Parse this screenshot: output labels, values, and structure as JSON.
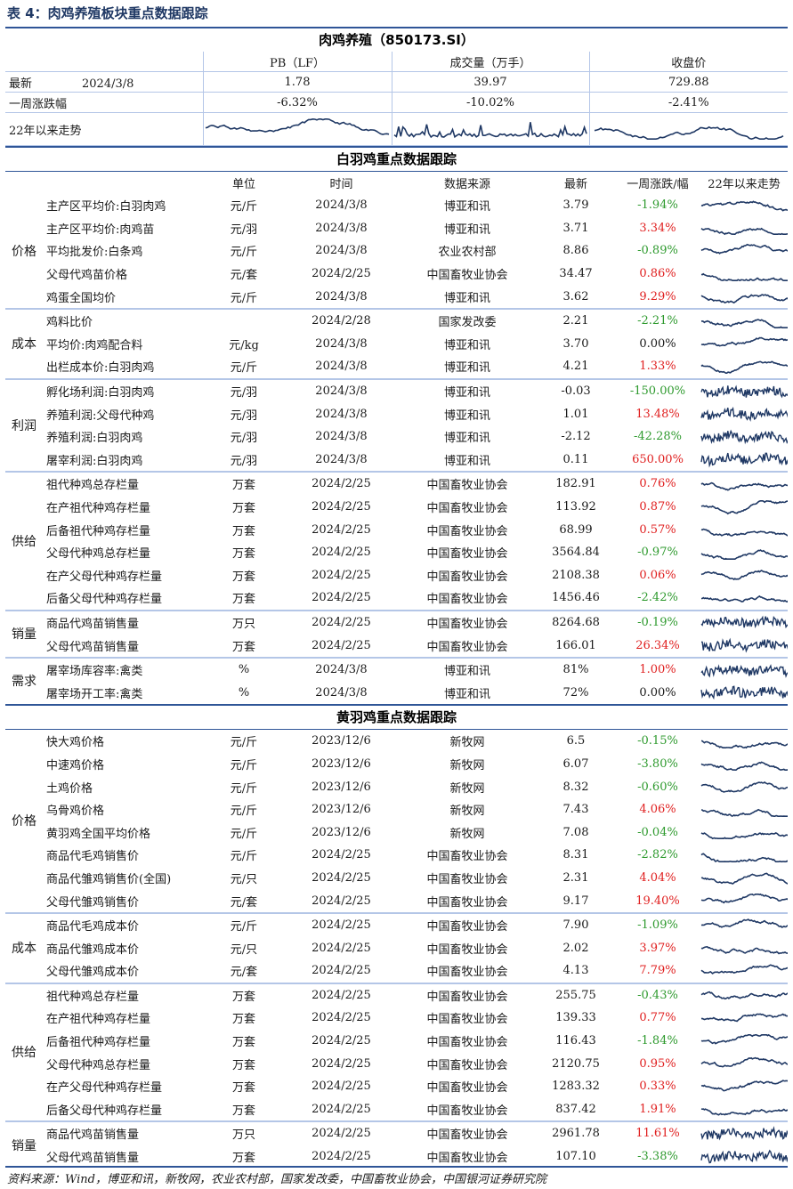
{
  "caption": "表 4：肉鸡养殖板块重点数据跟踪",
  "stock": {
    "title": "肉鸡养殖（850173.SI）",
    "columns": [
      "PB（LF）",
      "成交量（万手）",
      "收盘价"
    ],
    "latest_label": "最新",
    "latest_date": "2024/3/8",
    "latest_values": [
      "1.78",
      "39.97",
      "729.88"
    ],
    "week_label": "一周涨跌幅",
    "week_values": [
      "-6.32%",
      "-10.02%",
      "-2.41%"
    ],
    "trend_label": "22年以来走势"
  },
  "white": {
    "title": "白羽鸡重点数据跟踪",
    "headers": [
      "单位",
      "时间",
      "数据来源",
      "最新",
      "一周涨跌/幅",
      "22年以来走势"
    ],
    "groups": [
      {
        "name": "价格",
        "rows": [
          {
            "name": "主产区平均价:白羽肉鸡",
            "unit": "元/斤",
            "date": "2024/3/8",
            "source": "博亚和讯",
            "latest": "3.79",
            "change": "-1.94%",
            "dir": "neg"
          },
          {
            "name": "主产区平均价:肉鸡苗",
            "unit": "元/羽",
            "date": "2024/3/8",
            "source": "博亚和讯",
            "latest": "3.71",
            "change": "3.34%",
            "dir": "pos"
          },
          {
            "name": "平均批发价:白条鸡",
            "unit": "元/斤",
            "date": "2024/3/8",
            "source": "农业农村部",
            "latest": "8.86",
            "change": "-0.89%",
            "dir": "neg"
          },
          {
            "name": "父母代鸡苗价格",
            "unit": "元/套",
            "date": "2024/2/25",
            "source": "中国畜牧业协会",
            "latest": "34.47",
            "change": "0.86%",
            "dir": "pos"
          },
          {
            "name": "鸡蛋全国均价",
            "unit": "元/斤",
            "date": "2024/3/8",
            "source": "博亚和讯",
            "latest": "3.62",
            "change": "9.29%",
            "dir": "pos"
          }
        ]
      },
      {
        "name": "成本",
        "rows": [
          {
            "name": "鸡料比价",
            "unit": "",
            "date": "2024/2/28",
            "source": "国家发改委",
            "latest": "2.21",
            "change": "-2.21%",
            "dir": "neg"
          },
          {
            "name": "平均价:肉鸡配合料",
            "unit": "元/kg",
            "date": "2024/3/8",
            "source": "博亚和讯",
            "latest": "3.70",
            "change": "0.00%",
            "dir": "zero"
          },
          {
            "name": "出栏成本价:白羽肉鸡",
            "unit": "元/斤",
            "date": "2024/3/8",
            "source": "博亚和讯",
            "latest": "4.21",
            "change": "1.33%",
            "dir": "pos"
          }
        ]
      },
      {
        "name": "利润",
        "rows": [
          {
            "name": "孵化场利润:白羽肉鸡",
            "unit": "元/羽",
            "date": "2024/3/8",
            "source": "博亚和讯",
            "latest": "-0.03",
            "change": "-150.00%",
            "dir": "neg"
          },
          {
            "name": "养殖利润:父母代种鸡",
            "unit": "元/羽",
            "date": "2024/3/8",
            "source": "博亚和讯",
            "latest": "1.01",
            "change": "13.48%",
            "dir": "pos"
          },
          {
            "name": "养殖利润:白羽肉鸡",
            "unit": "元/羽",
            "date": "2024/3/8",
            "source": "博亚和讯",
            "latest": "-2.12",
            "change": "-42.28%",
            "dir": "neg"
          },
          {
            "name": "屠宰利润:白羽肉鸡",
            "unit": "元/羽",
            "date": "2024/3/8",
            "source": "博亚和讯",
            "latest": "0.11",
            "change": "650.00%",
            "dir": "pos"
          }
        ]
      },
      {
        "name": "供给",
        "rows": [
          {
            "name": "祖代种鸡总存栏量",
            "unit": "万套",
            "date": "2024/2/25",
            "source": "中国畜牧业协会",
            "latest": "182.91",
            "change": "0.76%",
            "dir": "pos"
          },
          {
            "name": "在产祖代种鸡存栏量",
            "unit": "万套",
            "date": "2024/2/25",
            "source": "中国畜牧业协会",
            "latest": "113.92",
            "change": "0.87%",
            "dir": "pos"
          },
          {
            "name": "后备祖代种鸡存栏量",
            "unit": "万套",
            "date": "2024/2/25",
            "source": "中国畜牧业协会",
            "latest": "68.99",
            "change": "0.57%",
            "dir": "pos"
          },
          {
            "name": "父母代种鸡总存栏量",
            "unit": "万套",
            "date": "2024/2/25",
            "source": "中国畜牧业协会",
            "latest": "3564.84",
            "change": "-0.97%",
            "dir": "neg"
          },
          {
            "name": "在产父母代种鸡存栏量",
            "unit": "万套",
            "date": "2024/2/25",
            "source": "中国畜牧业协会",
            "latest": "2108.38",
            "change": "0.06%",
            "dir": "pos"
          },
          {
            "name": "后备父母代种鸡存栏量",
            "unit": "万套",
            "date": "2024/2/25",
            "source": "中国畜牧业协会",
            "latest": "1456.46",
            "change": "-2.42%",
            "dir": "neg"
          }
        ]
      },
      {
        "name": "销量",
        "rows": [
          {
            "name": "商品代鸡苗销售量",
            "unit": "万只",
            "date": "2024/2/25",
            "source": "中国畜牧业协会",
            "latest": "8264.68",
            "change": "-0.19%",
            "dir": "neg"
          },
          {
            "name": "父母代鸡苗销售量",
            "unit": "万套",
            "date": "2024/2/25",
            "source": "中国畜牧业协会",
            "latest": "166.01",
            "change": "26.34%",
            "dir": "pos"
          }
        ]
      },
      {
        "name": "需求",
        "rows": [
          {
            "name": "屠宰场库容率:禽类",
            "unit": "%",
            "date": "2024/3/8",
            "source": "博亚和讯",
            "latest": "81%",
            "change": "1.00%",
            "dir": "pos"
          },
          {
            "name": "屠宰场开工率:禽类",
            "unit": "%",
            "date": "2024/3/8",
            "source": "博亚和讯",
            "latest": "72%",
            "change": "0.00%",
            "dir": "zero"
          }
        ]
      }
    ]
  },
  "yellow": {
    "title": "黄羽鸡重点数据跟踪",
    "groups": [
      {
        "name": "价格",
        "rows": [
          {
            "name": "快大鸡价格",
            "unit": "元/斤",
            "date": "2023/12/6",
            "source": "新牧网",
            "latest": "6.5",
            "change": "-0.15%",
            "dir": "neg"
          },
          {
            "name": "中速鸡价格",
            "unit": "元/斤",
            "date": "2023/12/6",
            "source": "新牧网",
            "latest": "6.07",
            "change": "-3.80%",
            "dir": "neg"
          },
          {
            "name": "土鸡价格",
            "unit": "元/斤",
            "date": "2023/12/6",
            "source": "新牧网",
            "latest": "8.32",
            "change": "-0.60%",
            "dir": "neg"
          },
          {
            "name": "乌骨鸡价格",
            "unit": "元/斤",
            "date": "2023/12/6",
            "source": "新牧网",
            "latest": "7.43",
            "change": "4.06%",
            "dir": "pos"
          },
          {
            "name": "黄羽鸡全国平均价格",
            "unit": "元/斤",
            "date": "2023/12/6",
            "source": "新牧网",
            "latest": "7.08",
            "change": "-0.04%",
            "dir": "neg"
          },
          {
            "name": "商品代毛鸡销售价",
            "unit": "元/斤",
            "date": "2024/2/25",
            "source": "中国畜牧业协会",
            "latest": "8.31",
            "change": "-2.82%",
            "dir": "neg"
          },
          {
            "name": "商品代雏鸡销售价(全国)",
            "unit": "元/只",
            "date": "2024/2/25",
            "source": "中国畜牧业协会",
            "latest": "2.31",
            "change": "4.04%",
            "dir": "pos"
          },
          {
            "name": "父母代雏鸡销售价",
            "unit": "元/套",
            "date": "2024/2/25",
            "source": "中国畜牧业协会",
            "latest": "9.17",
            "change": "19.40%",
            "dir": "pos"
          }
        ]
      },
      {
        "name": "成本",
        "rows": [
          {
            "name": "商品代毛鸡成本价",
            "unit": "元/斤",
            "date": "2024/2/25",
            "source": "中国畜牧业协会",
            "latest": "7.90",
            "change": "-1.09%",
            "dir": "neg"
          },
          {
            "name": "商品代雏鸡成本价",
            "unit": "元/只",
            "date": "2024/2/25",
            "source": "中国畜牧业协会",
            "latest": "2.02",
            "change": "3.97%",
            "dir": "pos"
          },
          {
            "name": "父母代雏鸡成本价",
            "unit": "元/套",
            "date": "2024/2/25",
            "source": "中国畜牧业协会",
            "latest": "4.13",
            "change": "7.79%",
            "dir": "pos"
          }
        ]
      },
      {
        "name": "供给",
        "rows": [
          {
            "name": "祖代种鸡总存栏量",
            "unit": "万套",
            "date": "2024/2/25",
            "source": "中国畜牧业协会",
            "latest": "255.75",
            "change": "-0.43%",
            "dir": "neg"
          },
          {
            "name": "在产祖代种鸡存栏量",
            "unit": "万套",
            "date": "2024/2/25",
            "source": "中国畜牧业协会",
            "latest": "139.33",
            "change": "0.77%",
            "dir": "pos"
          },
          {
            "name": "后备祖代种鸡存栏量",
            "unit": "万套",
            "date": "2024/2/25",
            "source": "中国畜牧业协会",
            "latest": "116.43",
            "change": "-1.84%",
            "dir": "neg"
          },
          {
            "name": "父母代种鸡总存栏量",
            "unit": "万套",
            "date": "2024/2/25",
            "source": "中国畜牧业协会",
            "latest": "2120.75",
            "change": "0.95%",
            "dir": "pos"
          },
          {
            "name": "在产父母代种鸡存栏量",
            "unit": "万套",
            "date": "2024/2/25",
            "source": "中国畜牧业协会",
            "latest": "1283.32",
            "change": "0.33%",
            "dir": "pos"
          },
          {
            "name": "后备父母代种鸡存栏量",
            "unit": "万套",
            "date": "2024/2/25",
            "source": "中国畜牧业协会",
            "latest": "837.42",
            "change": "1.91%",
            "dir": "pos"
          }
        ]
      },
      {
        "name": "销量",
        "rows": [
          {
            "name": "商品代鸡苗销售量",
            "unit": "万只",
            "date": "2024/2/25",
            "source": "中国畜牧业协会",
            "latest": "2961.78",
            "change": "11.61%",
            "dir": "pos"
          },
          {
            "name": "父母代鸡苗销售量",
            "unit": "万套",
            "date": "2024/2/25",
            "source": "中国畜牧业协会",
            "latest": "107.10",
            "change": "-3.38%",
            "dir": "neg"
          }
        ]
      }
    ]
  },
  "source_note": "资料来源：Wind，博亚和讯，新牧网，农业农村部，国家发改委，中国畜牧业协会，中国银河证券研究院",
  "colors": {
    "positive": "#e02020",
    "negative": "#2e9a2e",
    "line": "#1f3864",
    "rule": "#2f5597"
  }
}
